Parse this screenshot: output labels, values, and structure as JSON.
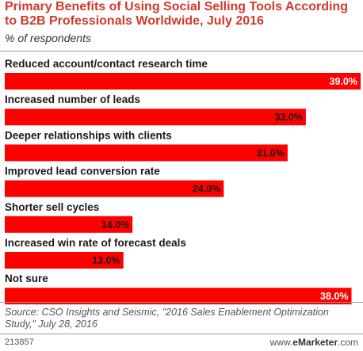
{
  "header": {
    "title": "Primary Benefits of Using Social Selling Tools According to B2B Professionals Worldwide, July 2016",
    "subtitle": "% of respondents"
  },
  "footer": {
    "source": "Source: CSO Insights and Seismic, \"2016 Sales Enablement Optimization Study,\" July 28, 2016",
    "id": "213857",
    "brand_prefix": "www.",
    "brand_name": "eMarketer",
    "brand_suffix": ".com"
  },
  "colors": {
    "bar": "#ff0000",
    "title": "#d13a2a"
  },
  "chart_data": {
    "type": "bar",
    "orientation": "horizontal",
    "categories": [
      "Reduced account/contact research time",
      "Increased number of leads",
      "Deeper relationships with clients",
      "Improved lead conversion rate",
      "Shorter sell cycles",
      "Increased win rate of forecast deals",
      "Not sure"
    ],
    "values": [
      39.0,
      33.0,
      31.0,
      24.0,
      14.0,
      13.0,
      38.0
    ],
    "value_labels": [
      "39.0%",
      "33.0%",
      "31.0%",
      "24.0%",
      "14.0%",
      "13.0%",
      "38.0%"
    ],
    "xlim": [
      0,
      39.0
    ],
    "grid": false,
    "legend": "none"
  }
}
